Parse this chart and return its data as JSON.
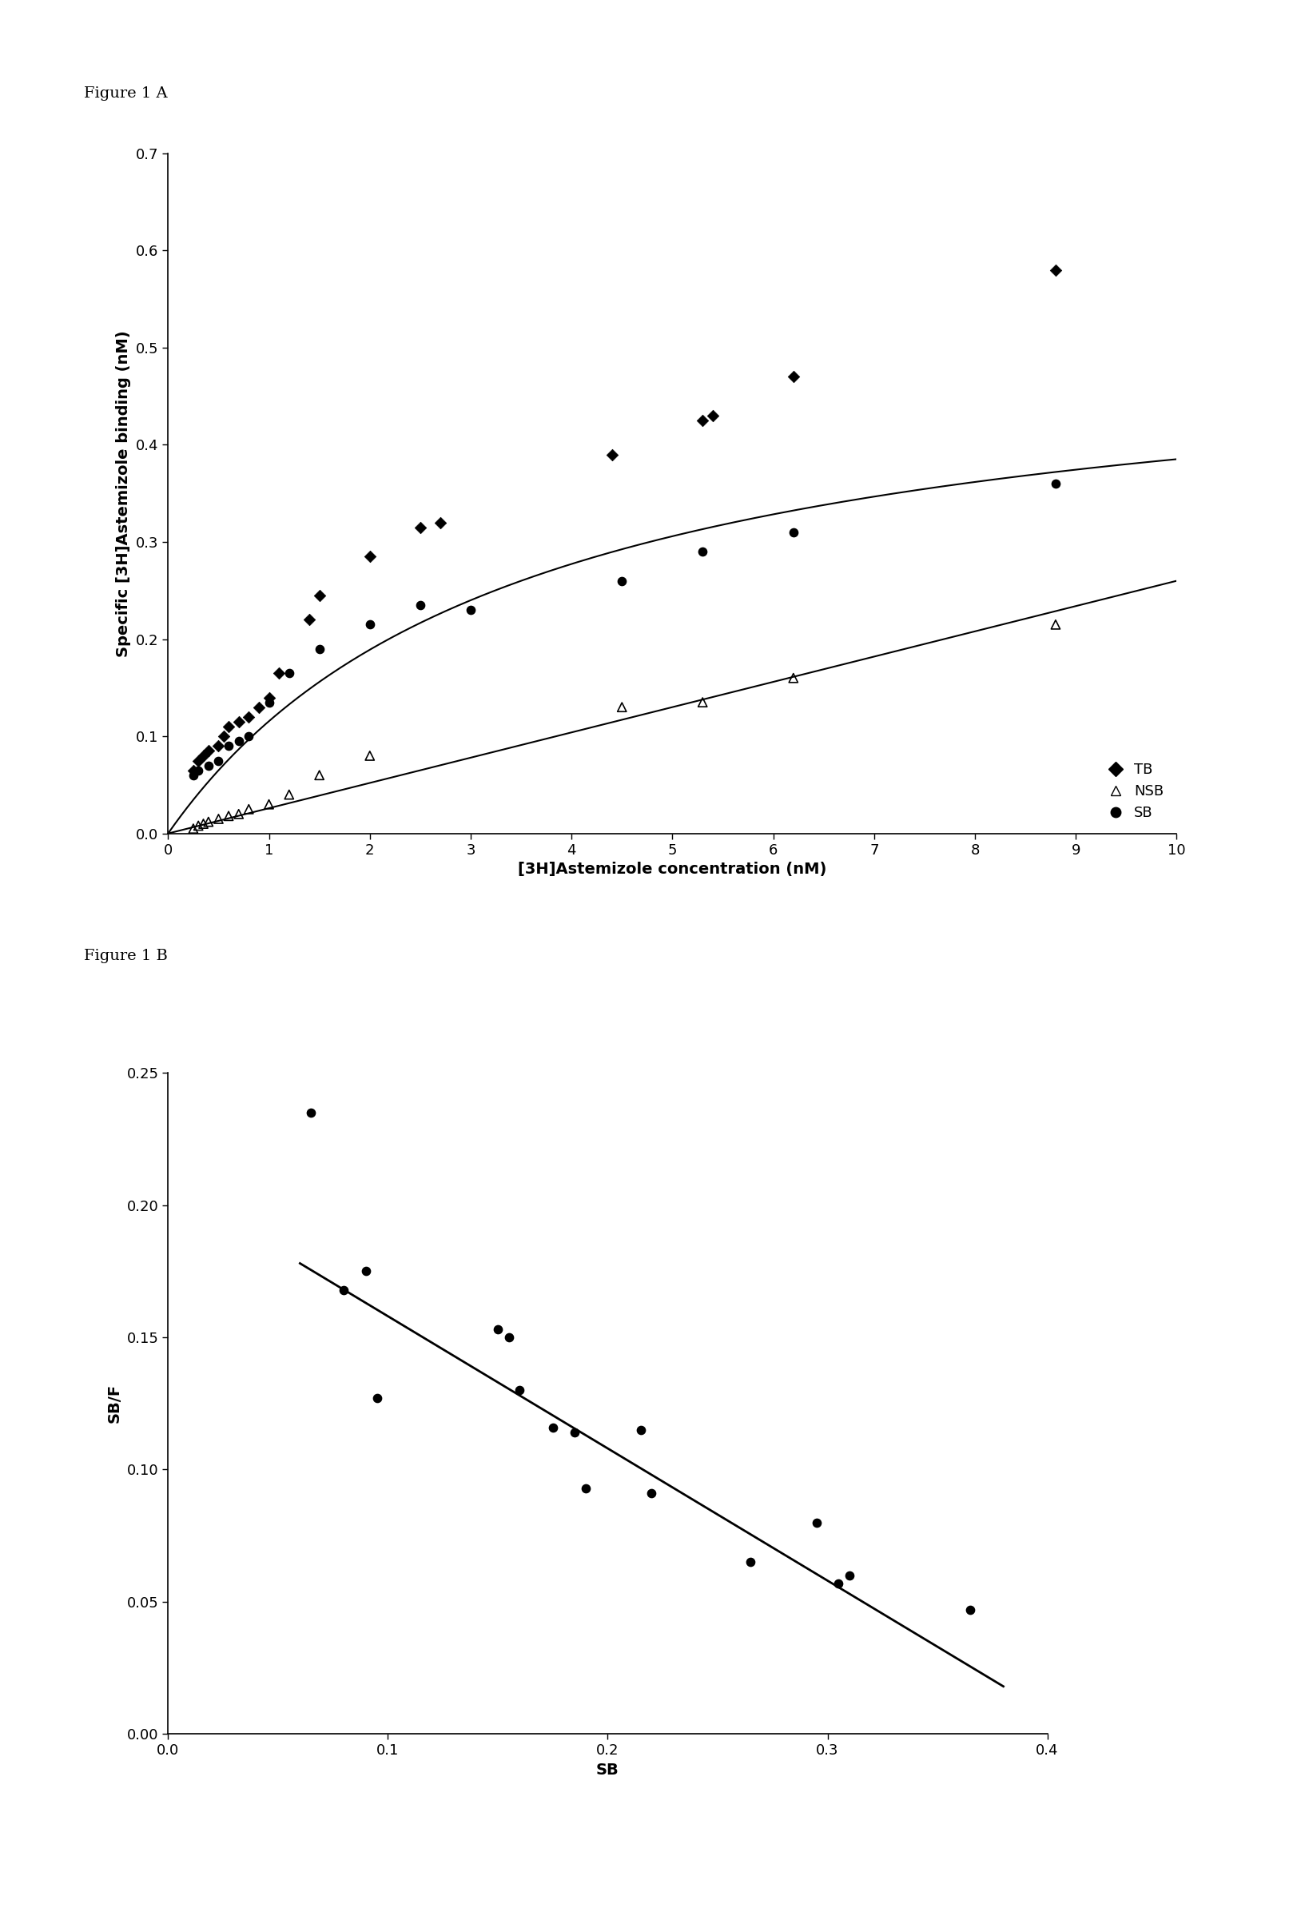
{
  "fig_label_A": "Figure 1 A",
  "fig_label_B": "Figure 1 B",
  "background_color": "#ffffff",
  "panelA": {
    "xlabel": "[3H]Astemizole concentration (nM)",
    "ylabel": "Specific [3H]Astemizole binding (nM)",
    "xlim": [
      0,
      10
    ],
    "ylim": [
      0,
      0.7
    ],
    "xticks": [
      0,
      1,
      2,
      3,
      4,
      5,
      6,
      7,
      8,
      9,
      10
    ],
    "yticks": [
      0.0,
      0.1,
      0.2,
      0.3,
      0.4,
      0.5,
      0.6,
      0.7
    ],
    "TB_x": [
      0.25,
      0.3,
      0.35,
      0.4,
      0.5,
      0.55,
      0.6,
      0.7,
      0.8,
      0.9,
      1.0,
      1.1,
      1.4,
      1.5,
      2.0,
      2.5,
      2.7,
      4.4,
      5.3,
      5.4,
      6.2,
      8.8
    ],
    "TB_y": [
      0.065,
      0.075,
      0.08,
      0.085,
      0.09,
      0.1,
      0.11,
      0.115,
      0.12,
      0.13,
      0.14,
      0.165,
      0.22,
      0.245,
      0.285,
      0.315,
      0.32,
      0.39,
      0.425,
      0.43,
      0.47,
      0.58
    ],
    "NSB_x": [
      0.25,
      0.3,
      0.35,
      0.4,
      0.5,
      0.6,
      0.7,
      0.8,
      1.0,
      1.2,
      1.5,
      2.0,
      4.5,
      5.3,
      6.2,
      8.8
    ],
    "NSB_y": [
      0.005,
      0.008,
      0.01,
      0.012,
      0.015,
      0.018,
      0.02,
      0.025,
      0.03,
      0.04,
      0.06,
      0.08,
      0.13,
      0.135,
      0.16,
      0.215
    ],
    "SB_x": [
      0.25,
      0.3,
      0.4,
      0.5,
      0.6,
      0.7,
      0.8,
      1.0,
      1.2,
      1.5,
      2.0,
      2.5,
      3.0,
      4.5,
      5.3,
      6.2,
      8.8
    ],
    "SB_y": [
      0.06,
      0.065,
      0.07,
      0.075,
      0.09,
      0.095,
      0.1,
      0.135,
      0.165,
      0.19,
      0.215,
      0.235,
      0.23,
      0.26,
      0.29,
      0.31,
      0.36
    ],
    "SB_fit_Bmax": 0.52,
    "SB_fit_Kd": 3.5,
    "NSB_fit_slope": 0.026,
    "legend_labels": [
      "TB",
      "NSB",
      "SB"
    ],
    "legend_markers": [
      "D",
      "^",
      "o"
    ]
  },
  "panelB": {
    "xlabel": "SB",
    "ylabel": "SB/F",
    "xlim": [
      0.0,
      0.4
    ],
    "ylim": [
      0.0,
      0.25
    ],
    "xticks": [
      0.0,
      0.1,
      0.2,
      0.3,
      0.4
    ],
    "yticks": [
      0.0,
      0.05,
      0.1,
      0.15,
      0.2,
      0.25
    ],
    "SB_x": [
      0.065,
      0.08,
      0.09,
      0.095,
      0.15,
      0.155,
      0.16,
      0.175,
      0.185,
      0.19,
      0.215,
      0.22,
      0.265,
      0.295,
      0.305,
      0.31,
      0.365
    ],
    "SB_y": [
      0.235,
      0.168,
      0.175,
      0.127,
      0.153,
      0.15,
      0.13,
      0.116,
      0.114,
      0.093,
      0.115,
      0.091,
      0.065,
      0.08,
      0.057,
      0.06,
      0.047
    ],
    "fit_x0": 0.06,
    "fit_x1": 0.38,
    "fit_y0": 0.178,
    "fit_y1": 0.018
  }
}
